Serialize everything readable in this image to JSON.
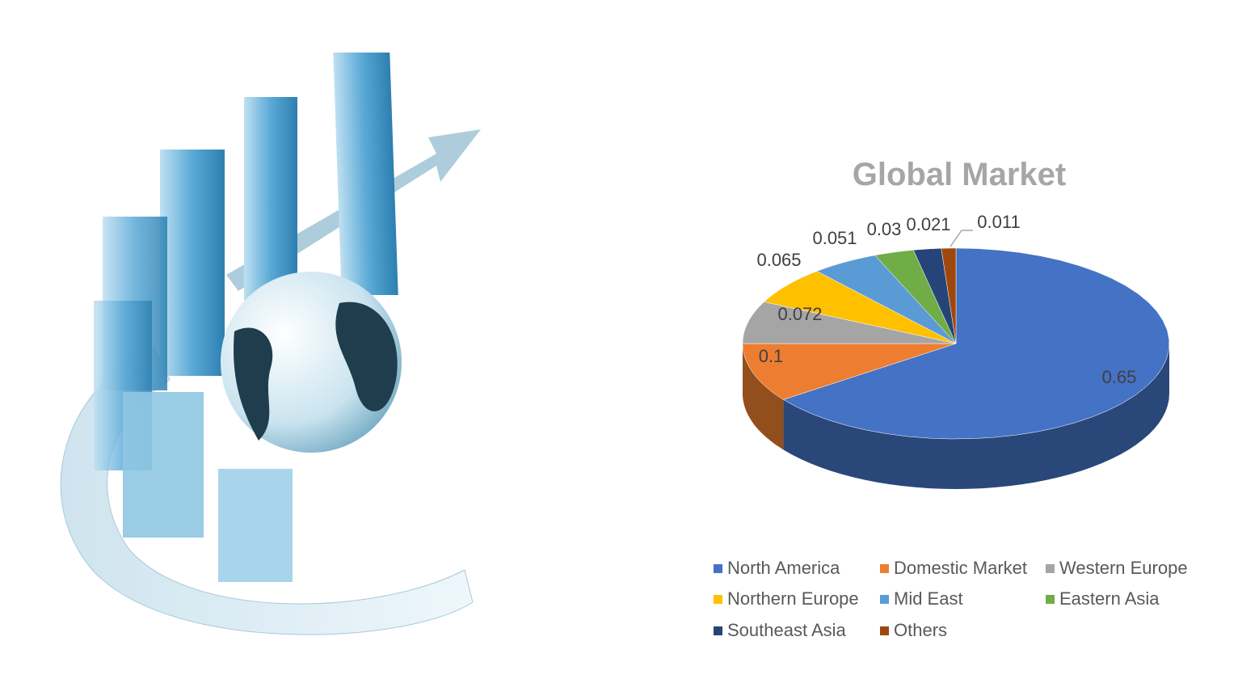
{
  "chart_data": {
    "type": "pie",
    "style": "3d",
    "title": "Global Market",
    "categories": [
      "North America",
      "Domestic Market",
      "Western Europe",
      "Northern Europe",
      "Mid East",
      "Eastern Asia",
      "Southeast Asia",
      "Others"
    ],
    "values": [
      0.65,
      0.1,
      0.072,
      0.065,
      0.051,
      0.03,
      0.021,
      0.011
    ],
    "data_labels": [
      "0.65",
      "0.1",
      "0.072",
      "0.065",
      "0.051",
      "0.03",
      "0.021",
      "0.011"
    ],
    "colors": [
      "#4472c4",
      "#ed7d31",
      "#a5a5a5",
      "#ffc000",
      "#5b9bd5",
      "#70ad47",
      "#264478",
      "#9e480e"
    ],
    "legend_position": "bottom"
  },
  "decoration": {
    "image": "3d-bar-chart-with-globe-and-arrow"
  }
}
